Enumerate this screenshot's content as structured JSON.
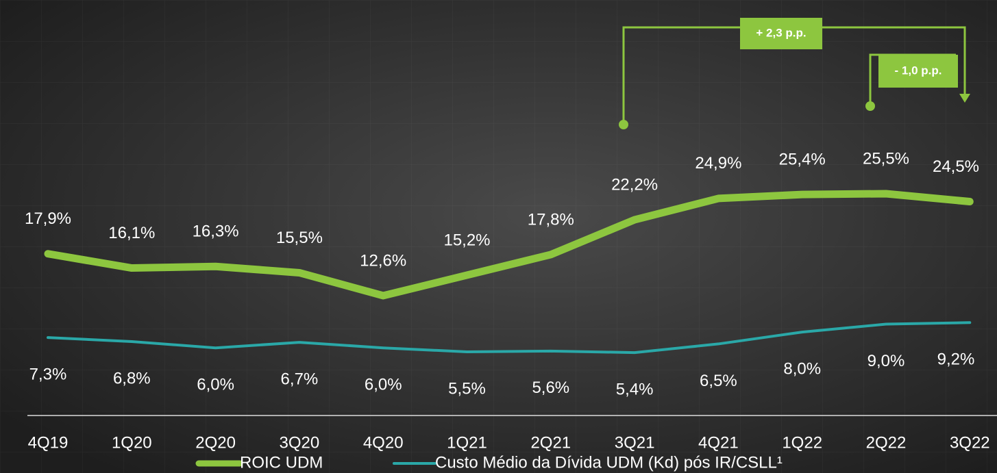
{
  "chart_data": {
    "type": "line",
    "categories": [
      "4Q19",
      "1Q20",
      "2Q20",
      "3Q20",
      "4Q20",
      "1Q21",
      "2Q21",
      "3Q21",
      "4Q21",
      "1Q22",
      "2Q22",
      "3Q22"
    ],
    "series": [
      {
        "name": "ROIC UDM",
        "color": "#8dc63f",
        "values": [
          17.9,
          16.1,
          16.3,
          15.5,
          12.6,
          15.2,
          17.8,
          22.2,
          24.9,
          25.4,
          25.5,
          24.5
        ],
        "value_labels": [
          "17,9%",
          "16,1%",
          "16,3%",
          "15,5%",
          "12,6%",
          "15,2%",
          "17,8%",
          "22,2%",
          "24,9%",
          "25,4%",
          "25,5%",
          "24,5%"
        ]
      },
      {
        "name": "Custo Médio da Dívida UDM (Kd) pós IR/CSLL¹",
        "color": "#2aa8a8",
        "values": [
          7.3,
          6.8,
          6.0,
          6.7,
          6.0,
          5.5,
          5.6,
          5.4,
          6.5,
          8.0,
          9.0,
          9.2
        ],
        "value_labels": [
          "7,3%",
          "6,8%",
          "6,0%",
          "6,7%",
          "6,0%",
          "5,5%",
          "5,6%",
          "5,4%",
          "6,5%",
          "8,0%",
          "9,0%",
          "9,2%"
        ]
      }
    ],
    "annotations": [
      "+ 2,3 p.p.",
      "- 1,0 p.p."
    ]
  }
}
